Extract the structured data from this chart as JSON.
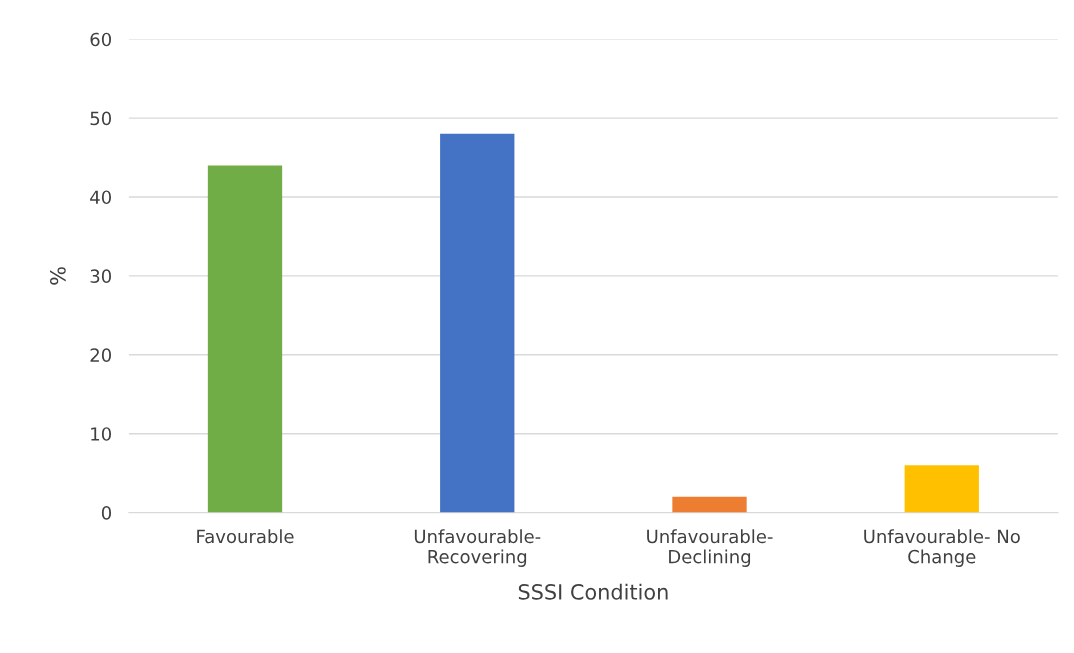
{
  "chart_data": {
    "type": "bar",
    "xlabel": "SSSI Condition",
    "ylabel": "%",
    "categories": [
      "Favourable",
      "Unfavourable-\nRecovering",
      "Unfavourable-\nDeclining",
      "Unfavourable- No\nChange"
    ],
    "values": [
      44,
      48,
      2,
      6
    ],
    "colors": [
      "#70ad47",
      "#4472c4",
      "#ed7d31",
      "#ffc000"
    ],
    "ylim": [
      0,
      60
    ],
    "yticks": [
      0,
      10,
      20,
      30,
      40,
      50,
      60
    ],
    "grid": "y"
  }
}
